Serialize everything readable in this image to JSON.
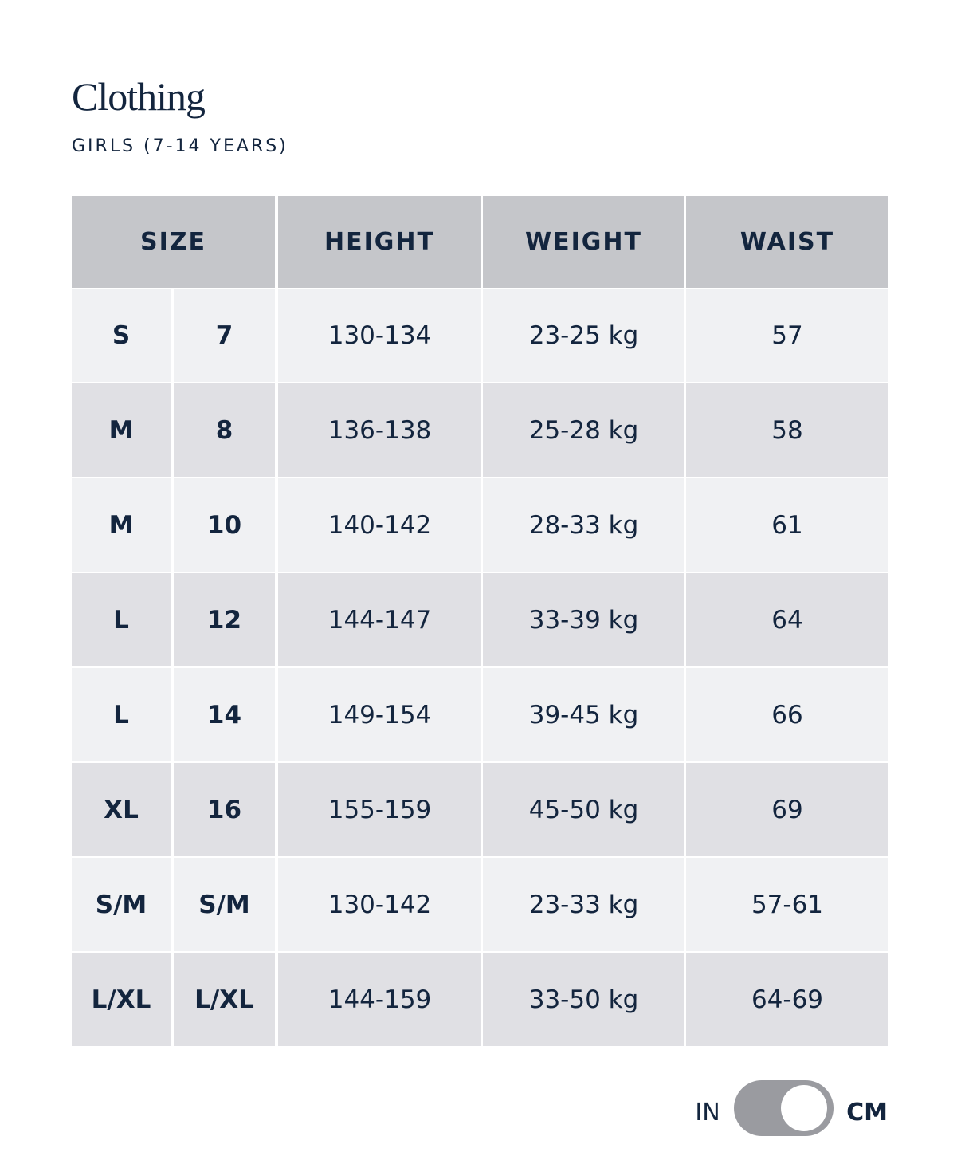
{
  "header": {
    "title": "Clothing",
    "subtitle": "GIRLS (7-14 YEARS)"
  },
  "table": {
    "columns": [
      "SIZE",
      "HEIGHT",
      "WEIGHT",
      "WAIST"
    ],
    "rows": [
      [
        "S",
        "7",
        "130-134",
        "23-25 kg",
        "57"
      ],
      [
        "M",
        "8",
        "136-138",
        "25-28 kg",
        "58"
      ],
      [
        "M",
        "10",
        "140-142",
        "28-33 kg",
        "61"
      ],
      [
        "L",
        "12",
        "144-147",
        "33-39 kg",
        "64"
      ],
      [
        "L",
        "14",
        "149-154",
        "39-45 kg",
        "66"
      ],
      [
        "XL",
        "16",
        "155-159",
        "45-50 kg",
        "69"
      ],
      [
        "S/M",
        "S/M",
        "130-142",
        "23-33 kg",
        "57-61"
      ],
      [
        "L/XL",
        "L/XL",
        "144-159",
        "33-50 kg",
        "64-69"
      ]
    ]
  },
  "toggle": {
    "left": "IN",
    "right": "CM"
  }
}
